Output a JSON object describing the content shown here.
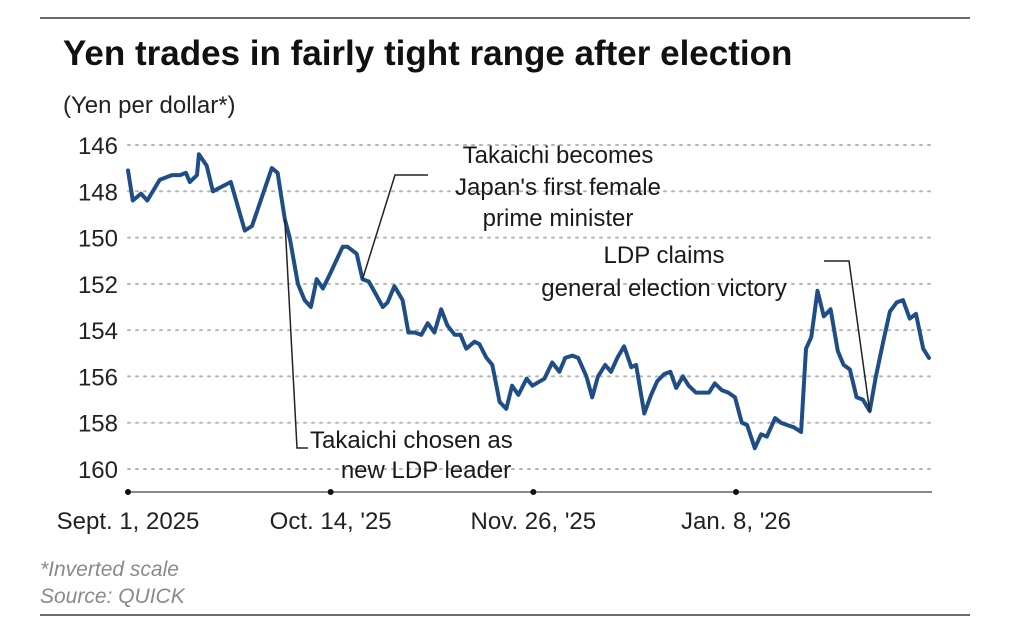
{
  "header": {
    "title": "Yen trades in fairly tight range after election",
    "unit_label": "(Yen per dollar*)"
  },
  "footer": {
    "note": "*Inverted scale",
    "source": "Source: QUICK"
  },
  "colors": {
    "line": "#1f4e86",
    "grid": "#b5b5b5",
    "axis": "#8a8a8a",
    "rule": "#6b6b6b",
    "leader": "#222222"
  },
  "chart_data": {
    "type": "line",
    "title": "Yen trades in fairly tight range after election",
    "ylabel": "(Yen per dollar*)",
    "xlabel": "",
    "y_inverted": true,
    "ylim": [
      146,
      160
    ],
    "yticks": [
      146,
      148,
      150,
      152,
      154,
      156,
      158,
      160
    ],
    "xlim_days": [
      0,
      166
    ],
    "xticks": [
      {
        "day": 0,
        "label": "Sept. 1, 2025"
      },
      {
        "day": 42,
        "label": "Oct. 14, '25"
      },
      {
        "day": 84,
        "label": "Nov. 26, '25"
      },
      {
        "day": 126,
        "label": "Jan. 8, '26"
      }
    ],
    "grid": true,
    "legend": "none",
    "series": [
      {
        "name": "Yen per dollar",
        "points": [
          [
            0,
            147.1
          ],
          [
            1,
            148.4
          ],
          [
            2.7,
            148.1
          ],
          [
            4,
            148.4
          ],
          [
            6.6,
            147.5
          ],
          [
            9.1,
            147.3
          ],
          [
            10.8,
            147.3
          ],
          [
            12,
            147.2
          ],
          [
            12.8,
            147.6
          ],
          [
            14.3,
            147.3
          ],
          [
            14.7,
            146.4
          ],
          [
            16.3,
            146.9
          ],
          [
            17.6,
            148.0
          ],
          [
            21.3,
            147.6
          ],
          [
            24.2,
            149.7
          ],
          [
            25.7,
            149.5
          ],
          [
            29.8,
            147.0
          ],
          [
            31,
            147.2
          ],
          [
            32.5,
            149.2
          ],
          [
            33.5,
            150.0
          ],
          [
            35.2,
            152.0
          ],
          [
            36.6,
            152.7
          ],
          [
            37.9,
            153.0
          ],
          [
            39.1,
            151.8
          ],
          [
            40.4,
            152.2
          ],
          [
            41.8,
            151.6
          ],
          [
            44.5,
            150.4
          ],
          [
            45.5,
            150.4
          ],
          [
            47.4,
            150.7
          ],
          [
            48.6,
            151.8
          ],
          [
            49.9,
            151.9
          ],
          [
            51.5,
            152.5
          ],
          [
            52.8,
            153.0
          ],
          [
            53.8,
            152.8
          ],
          [
            55.2,
            152.1
          ],
          [
            56.9,
            152.7
          ],
          [
            58.1,
            154.1
          ],
          [
            59.4,
            154.1
          ],
          [
            60.8,
            154.2
          ],
          [
            62.1,
            153.7
          ],
          [
            63.5,
            154.1
          ],
          [
            64.9,
            153.1
          ],
          [
            66.2,
            153.8
          ],
          [
            67.7,
            154.2
          ],
          [
            68.9,
            154.2
          ],
          [
            70.1,
            154.8
          ],
          [
            71.8,
            154.5
          ],
          [
            72.8,
            154.6
          ],
          [
            74.3,
            155.2
          ],
          [
            75.5,
            155.5
          ],
          [
            77,
            157.1
          ],
          [
            78.4,
            157.4
          ],
          [
            79.6,
            156.4
          ],
          [
            80.9,
            156.8
          ],
          [
            82.6,
            156.1
          ],
          [
            83.8,
            156.4
          ],
          [
            86.3,
            156.1
          ],
          [
            87.9,
            155.4
          ],
          [
            89.4,
            155.8
          ],
          [
            90.6,
            155.2
          ],
          [
            92.1,
            155.1
          ],
          [
            93.3,
            155.2
          ],
          [
            95,
            156.0
          ],
          [
            96.2,
            156.9
          ],
          [
            97.4,
            156.0
          ],
          [
            98.9,
            155.5
          ],
          [
            100.1,
            155.8
          ],
          [
            101.4,
            155.2
          ],
          [
            102.8,
            154.7
          ],
          [
            104.3,
            155.6
          ],
          [
            105.3,
            155.5
          ],
          [
            107,
            157.6
          ],
          [
            108.4,
            156.8
          ],
          [
            109.7,
            156.2
          ],
          [
            111.1,
            155.9
          ],
          [
            112.4,
            155.8
          ],
          [
            113.6,
            156.5
          ],
          [
            115,
            156.0
          ],
          [
            116.2,
            156.4
          ],
          [
            117.7,
            156.7
          ],
          [
            118.9,
            156.7
          ],
          [
            120.4,
            156.7
          ],
          [
            121.6,
            156.3
          ],
          [
            123.1,
            156.6
          ],
          [
            124.4,
            156.7
          ],
          [
            125.8,
            156.9
          ],
          [
            127.2,
            158.0
          ],
          [
            128.3,
            158.1
          ],
          [
            129.9,
            159.1
          ],
          [
            131.2,
            158.5
          ],
          [
            132.4,
            158.6
          ],
          [
            134.1,
            157.8
          ],
          [
            135.3,
            158.0
          ],
          [
            136.6,
            158.1
          ],
          [
            138,
            158.2
          ],
          [
            139.5,
            158.4
          ],
          [
            140.5,
            154.8
          ],
          [
            141.6,
            154.3
          ],
          [
            142.9,
            152.3
          ],
          [
            144.2,
            153.4
          ],
          [
            145.6,
            153.1
          ],
          [
            147.1,
            154.9
          ],
          [
            148.3,
            155.5
          ],
          [
            149.6,
            155.7
          ],
          [
            151,
            156.9
          ],
          [
            152.3,
            157.0
          ],
          [
            153.7,
            157.5
          ],
          [
            155,
            156.0
          ],
          [
            156.6,
            154.4
          ],
          [
            157.9,
            153.2
          ],
          [
            159.3,
            152.8
          ],
          [
            160.6,
            152.7
          ],
          [
            162,
            153.5
          ],
          [
            163.3,
            153.3
          ],
          [
            164.8,
            154.8
          ],
          [
            166,
            155.2
          ]
        ]
      }
    ],
    "annotations": [
      {
        "lines": [
          "Takaichi chosen as",
          "new LDP leader"
        ],
        "day": 32.5,
        "value": 149.2
      },
      {
        "lines": [
          "Takaichi becomes",
          "Japan's first female",
          "prime minister"
        ],
        "day": 48.6,
        "value": 151.8
      },
      {
        "lines": [
          "LDP claims",
          "general election victory"
        ],
        "day": 153.7,
        "value": 157.5
      }
    ]
  }
}
